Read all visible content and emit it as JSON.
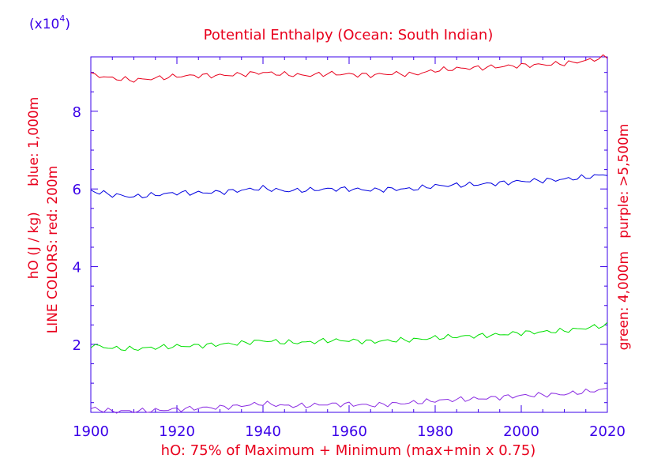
{
  "chart_data": {
    "type": "line",
    "title": "Potential Enthalpy (Ocean: South Indian)",
    "scale_label_prefix": "(x10",
    "scale_label_exp": "4",
    "scale_label_suffix": ")",
    "xlabel": "hO: 75% of Maximum + Minimum (max+min x 0.75)",
    "ylabel_line1": "LINE COLORS: red: 200m",
    "ylabel_line2": "hO (J / kg)      blue: 1,000m",
    "right_label_line1": "green: 4,000m   purple: >5,500m",
    "xlim": [
      1900,
      2020
    ],
    "ylim": [
      0.25,
      9.4
    ],
    "x_ticks": [
      1900,
      1920,
      1940,
      1960,
      1980,
      2000,
      2020
    ],
    "x_tick_labels": [
      "1900",
      "1920",
      "1940",
      "1960",
      "1980",
      "2000",
      "2020"
    ],
    "y_ticks": [
      2,
      4,
      6,
      8
    ],
    "y_tick_labels": [
      "2",
      "4",
      "6",
      "8"
    ],
    "colors": {
      "text_red": "#e8001c",
      "text_blue": "#3a00e8",
      "axis": "#3a00e8",
      "red": "#e8001c",
      "blue": "#0000e0",
      "green": "#00e000",
      "purple": "#8a2be2"
    },
    "series": [
      {
        "name": "red: 200m",
        "color": "red",
        "x": [
          1900,
          1905,
          1910,
          1915,
          1920,
          1925,
          1930,
          1935,
          1940,
          1945,
          1950,
          1955,
          1960,
          1965,
          1970,
          1975,
          1980,
          1985,
          1990,
          1995,
          2000,
          2005,
          2010,
          2015,
          2020
        ],
        "values": [
          8.95,
          8.85,
          8.8,
          8.85,
          8.9,
          8.92,
          8.92,
          8.95,
          9.0,
          8.95,
          8.92,
          8.97,
          8.95,
          8.93,
          8.97,
          8.95,
          9.05,
          9.1,
          9.12,
          9.15,
          9.18,
          9.2,
          9.23,
          9.3,
          9.4
        ]
      },
      {
        "name": "blue: 1,000m",
        "color": "blue",
        "x": [
          1900,
          1905,
          1910,
          1915,
          1920,
          1925,
          1930,
          1935,
          1940,
          1945,
          1950,
          1955,
          1960,
          1965,
          1970,
          1975,
          1980,
          1985,
          1990,
          1995,
          2000,
          2005,
          2010,
          2015,
          2020
        ],
        "values": [
          5.95,
          5.85,
          5.8,
          5.85,
          5.9,
          5.9,
          5.92,
          5.97,
          6.02,
          5.95,
          5.97,
          6.0,
          6.0,
          5.97,
          6.0,
          6.0,
          6.08,
          6.1,
          6.12,
          6.15,
          6.2,
          6.22,
          6.25,
          6.3,
          6.38
        ]
      },
      {
        "name": "green: 4,000m",
        "color": "green",
        "x": [
          1900,
          1905,
          1910,
          1915,
          1920,
          1925,
          1930,
          1935,
          1940,
          1945,
          1950,
          1955,
          1960,
          1965,
          1970,
          1975,
          1980,
          1985,
          1990,
          1995,
          2000,
          2005,
          2010,
          2015,
          2020
        ],
        "values": [
          1.98,
          1.9,
          1.88,
          1.92,
          1.95,
          1.97,
          2.0,
          2.03,
          2.1,
          2.05,
          2.05,
          2.1,
          2.1,
          2.07,
          2.1,
          2.12,
          2.17,
          2.2,
          2.22,
          2.25,
          2.3,
          2.32,
          2.35,
          2.42,
          2.5
        ]
      },
      {
        "name": "purple: >5,500m",
        "color": "purple",
        "x": [
          1900,
          1905,
          1910,
          1915,
          1920,
          1925,
          1930,
          1935,
          1940,
          1945,
          1950,
          1955,
          1960,
          1965,
          1970,
          1975,
          1980,
          1985,
          1990,
          1995,
          2000,
          2005,
          2010,
          2015,
          2020
        ],
        "values": [
          0.35,
          0.28,
          0.28,
          0.3,
          0.33,
          0.36,
          0.38,
          0.42,
          0.48,
          0.42,
          0.42,
          0.46,
          0.46,
          0.43,
          0.47,
          0.5,
          0.55,
          0.58,
          0.6,
          0.64,
          0.68,
          0.7,
          0.72,
          0.78,
          0.85
        ]
      }
    ]
  }
}
